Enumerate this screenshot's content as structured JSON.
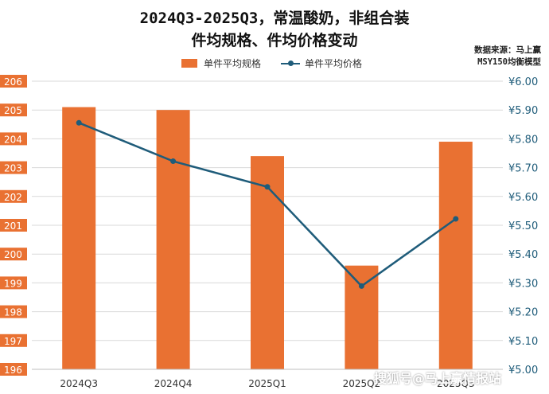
{
  "header": {
    "title_line1": "2024Q3-2025Q3，常温酸奶，非组合装",
    "title_line2": "件均规格、件均价格变动",
    "source_line1": "数据来源：马上赢",
    "source_line2": "MSY150均衡模型"
  },
  "watermark": "搜狐号@马上赢情报站",
  "colors": {
    "bar": "#E97132",
    "line": "#1F5C7A",
    "left_axis_label": "#E97132",
    "right_axis_label": "#1F5C7A"
  },
  "chart_data": {
    "type": "bar+line",
    "categories": [
      "2024Q3",
      "2024Q4",
      "2025Q1",
      "2025Q2",
      "2025Q3"
    ],
    "series": [
      {
        "name": "单件平均规格",
        "type": "bar",
        "axis": "left",
        "values": [
          205.1,
          205.0,
          203.4,
          199.6,
          203.9
        ]
      },
      {
        "name": "单件平均价格",
        "type": "line",
        "axis": "right",
        "values": [
          5.87,
          5.75,
          5.67,
          5.36,
          5.57
        ]
      }
    ],
    "y_left": {
      "min": 196,
      "max": 206,
      "ticks": [
        "206",
        "205",
        "204",
        "203",
        "202",
        "201",
        "200",
        "199",
        "198",
        "197",
        "196"
      ]
    },
    "y_right": {
      "min": 5.1,
      "max": 6.0,
      "ticks": [
        "¥6.00",
        "¥5.90",
        "¥5.80",
        "¥5.70",
        "¥5.60",
        "¥5.50",
        "¥5.40",
        "¥5.30",
        "¥5.20",
        "¥5.10",
        "¥5.00"
      ]
    },
    "grid": true,
    "legend_position": "top"
  }
}
